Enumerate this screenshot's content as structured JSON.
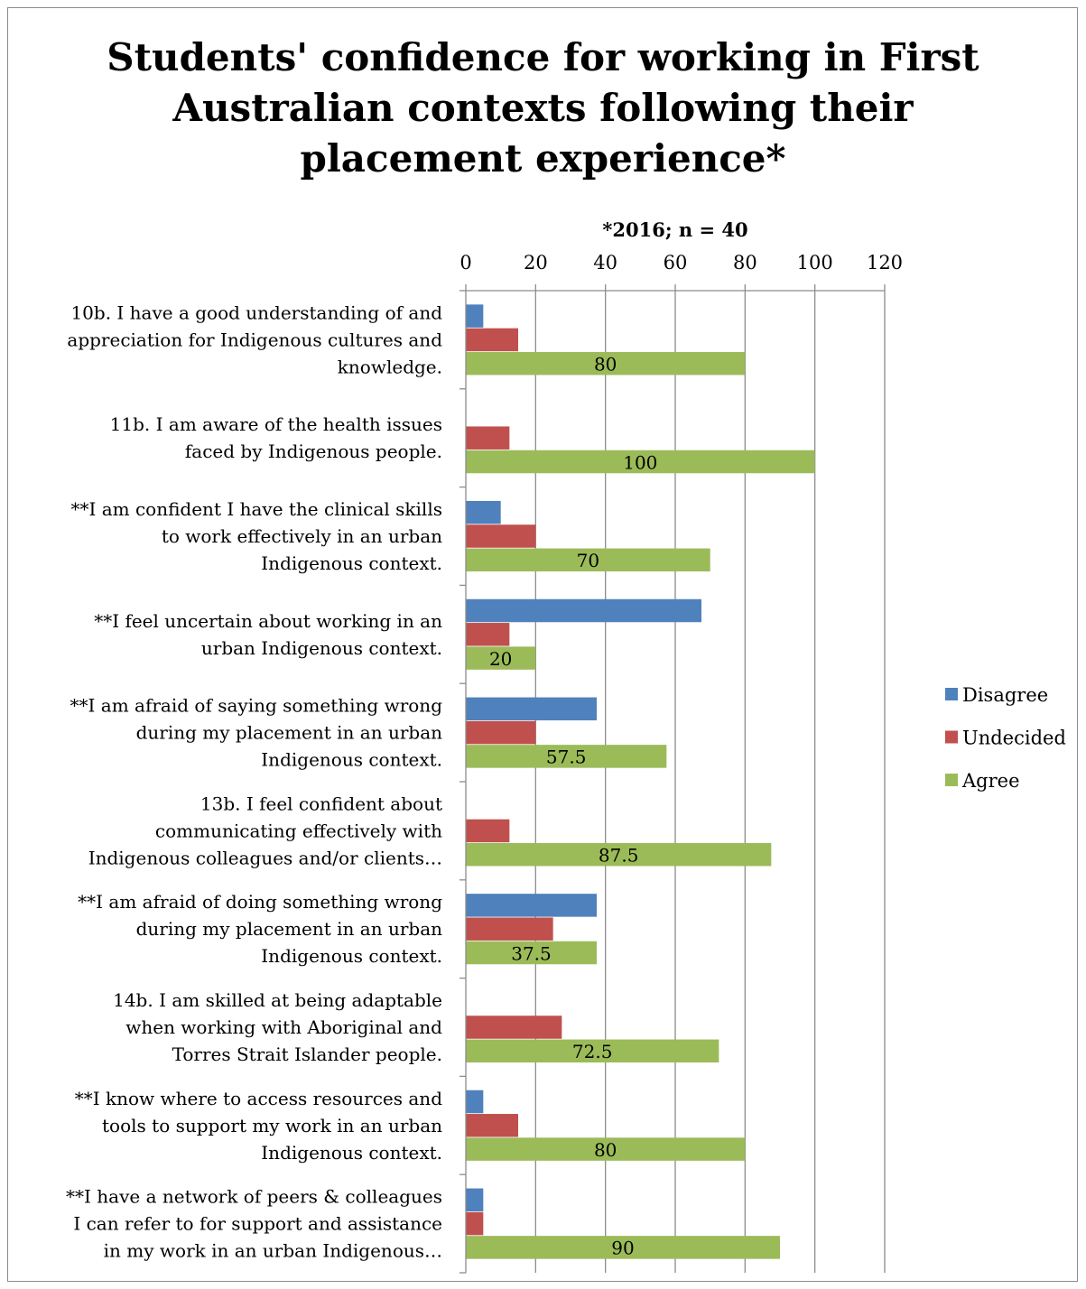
{
  "chart_data": {
    "type": "bar",
    "orientation": "horizontal",
    "title": "Students' confidence for working in First Australian contexts following their placement experience*",
    "xlabel": "*2016; n = 40",
    "ylabel": "",
    "xlim": [
      0,
      120
    ],
    "x_ticks": [
      0,
      20,
      40,
      60,
      80,
      100,
      120
    ],
    "grid": "vertical",
    "legend_position": "right",
    "categories": [
      "10b. I have a good understanding of and appreciation for Indigenous cultures and knowledge.",
      "11b. I am aware of the health issues faced by Indigenous people.",
      "**I am confident I have the clinical skills to work effectively in an urban Indigenous context.",
      "**I feel uncertain about working in an urban Indigenous context.",
      "**I am afraid of saying something wrong during my placement in an urban Indigenous context.",
      "13b. I feel confident about communicating effectively with Indigenous colleagues and/or clients…",
      "**I am afraid of doing something wrong during my placement in an urban Indigenous context.",
      "14b. I am skilled at being adaptable when working with Aboriginal and Torres Strait Islander people.",
      "**I know where to access resources and tools to support my work in an urban Indigenous context.",
      "**I have a network of peers & colleagues I can refer to for support and assistance in my work in an urban Indigenous…"
    ],
    "category_label_lines": [
      [
        "10b. I have a good understanding of and",
        "appreciation for Indigenous cultures and",
        "knowledge."
      ],
      [
        "11b. I am aware of the health issues",
        "faced by Indigenous people."
      ],
      [
        "**I am confident I have the clinical skills",
        "to work effectively in an urban",
        "Indigenous context."
      ],
      [
        "**I feel uncertain about working in an",
        "urban Indigenous context."
      ],
      [
        "**I am afraid of saying something wrong",
        "during my placement in an urban",
        "Indigenous context."
      ],
      [
        "13b. I feel confident about",
        "communicating effectively with",
        "Indigenous colleagues and/or clients…"
      ],
      [
        "**I am afraid of doing something wrong",
        "during my placement in an urban",
        "Indigenous context."
      ],
      [
        "14b. I am skilled at being adaptable",
        "when working with Aboriginal and",
        "Torres Strait Islander people."
      ],
      [
        "**I know where to access resources and",
        "tools to support my work in an urban",
        "Indigenous context."
      ],
      [
        "**I have a network of peers & colleagues",
        "I can refer to for support and assistance",
        "in my work in an urban Indigenous…"
      ]
    ],
    "series": [
      {
        "name": "Disagree",
        "color": "#4f81bd",
        "values": [
          5,
          0,
          10,
          67.5,
          37.5,
          0,
          37.5,
          0,
          5,
          5
        ]
      },
      {
        "name": "Undecided",
        "color": "#c0504d",
        "values": [
          15,
          12.5,
          20,
          12.5,
          20,
          12.5,
          25,
          27.5,
          15,
          5
        ]
      },
      {
        "name": "Agree",
        "color": "#9bbb59",
        "values": [
          80,
          100,
          70,
          20,
          57.5,
          87.5,
          37.5,
          72.5,
          80,
          90
        ]
      }
    ],
    "data_labels": {
      "series": "Agree",
      "text": [
        "80",
        "100",
        "70",
        "20",
        "57.5",
        "87.5",
        "37.5",
        "72.5",
        "80",
        "90"
      ]
    }
  }
}
